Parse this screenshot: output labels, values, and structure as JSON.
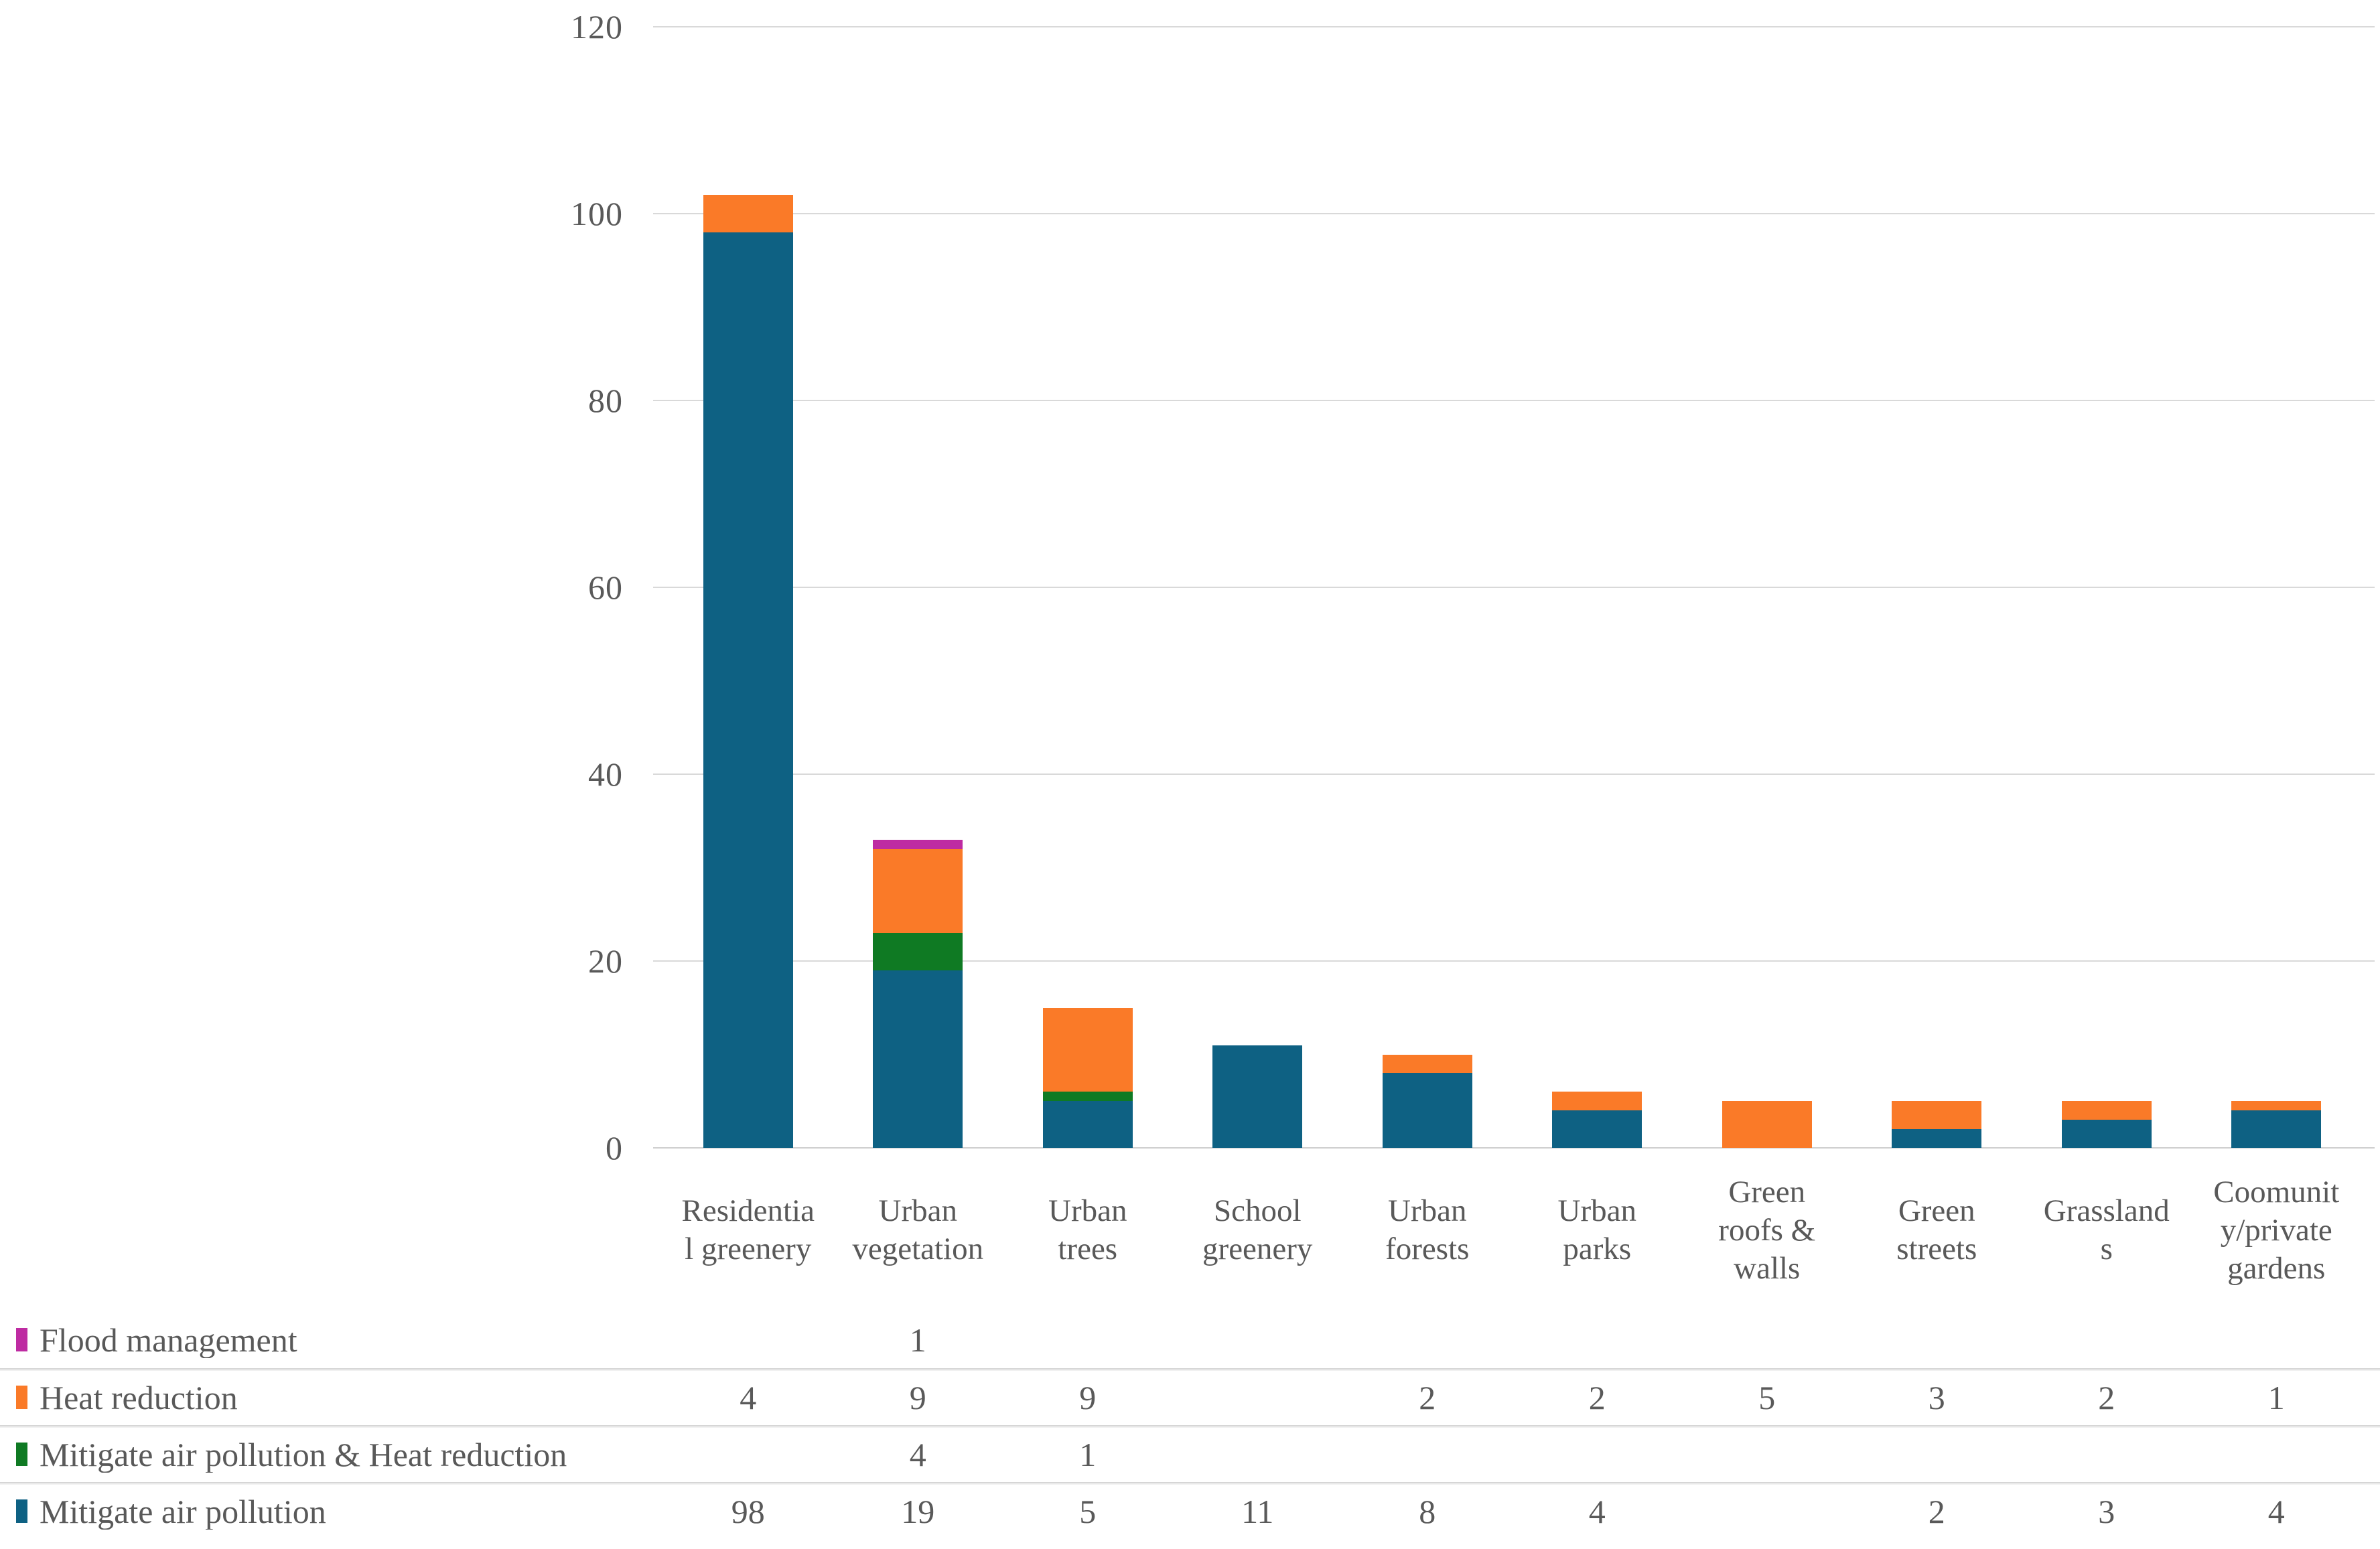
{
  "colors": {
    "mitigate_air_pollution": "#0e6183",
    "mitigate_air_pollution_and_heat_reduction": "#0f7a23",
    "heat_reduction": "#fa7a28",
    "flood_management": "#be2ba2",
    "gridline": "#d9d9d9",
    "text": "#595959"
  },
  "chart_data": {
    "type": "bar",
    "stacked": true,
    "title": "",
    "xlabel": "",
    "ylabel": "",
    "ylim": [
      0,
      120
    ],
    "yticks": [
      0,
      20,
      40,
      60,
      80,
      100,
      120
    ],
    "grid": true,
    "legend_position": "table-below-left",
    "categories": [
      "Residential greenery",
      "Urban vegetation",
      "Urban trees",
      "School greenery",
      "Urban forests",
      "Urban parks",
      "Green roofs & walls",
      "Green streets",
      "Grasslands",
      "Coomunity/private gardens"
    ],
    "series": [
      {
        "name": "Mitigate air pollution",
        "color": "#0e6183",
        "values": [
          98,
          19,
          5,
          11,
          8,
          4,
          0,
          2,
          3,
          4
        ]
      },
      {
        "name": "Mitigate air pollution & Heat reduction",
        "color": "#0f7a23",
        "values": [
          0,
          4,
          1,
          0,
          0,
          0,
          0,
          0,
          0,
          0
        ]
      },
      {
        "name": "Heat reduction",
        "color": "#fa7a28",
        "values": [
          4,
          9,
          9,
          0,
          2,
          2,
          5,
          3,
          2,
          1
        ]
      },
      {
        "name": "Flood management",
        "color": "#be2ba2",
        "values": [
          0,
          1,
          0,
          0,
          0,
          0,
          0,
          0,
          0,
          0
        ]
      }
    ]
  },
  "x_axis": {
    "label_lines": [
      [
        "Residentia",
        "l greenery"
      ],
      [
        "Urban",
        "vegetation"
      ],
      [
        "Urban",
        "trees"
      ],
      [
        "School",
        "greenery"
      ],
      [
        "Urban",
        "forests"
      ],
      [
        "Urban",
        "parks"
      ],
      [
        "Green",
        "roofs &",
        "walls"
      ],
      [
        "Green",
        "streets"
      ],
      [
        "Grassland",
        "s"
      ],
      [
        "Coomunit",
        "y/private",
        "gardens"
      ]
    ]
  },
  "table": {
    "rows": [
      {
        "label": "Flood management",
        "color": "#be2ba2",
        "cells": [
          "",
          "1",
          "",
          "",
          "",
          "",
          "",
          "",
          "",
          ""
        ]
      },
      {
        "label": "Heat reduction",
        "color": "#fa7a28",
        "cells": [
          "4",
          "9",
          "9",
          "",
          "2",
          "2",
          "5",
          "3",
          "2",
          "1"
        ]
      },
      {
        "label": "Mitigate air pollution & Heat reduction",
        "color": "#0f7a23",
        "cells": [
          "",
          "4",
          "1",
          "",
          "",
          "",
          "",
          "",
          "",
          ""
        ]
      },
      {
        "label": "Mitigate air pollution",
        "color": "#0e6183",
        "cells": [
          "98",
          "19",
          "5",
          "11",
          "8",
          "4",
          "",
          "2",
          "3",
          "4"
        ]
      }
    ]
  }
}
